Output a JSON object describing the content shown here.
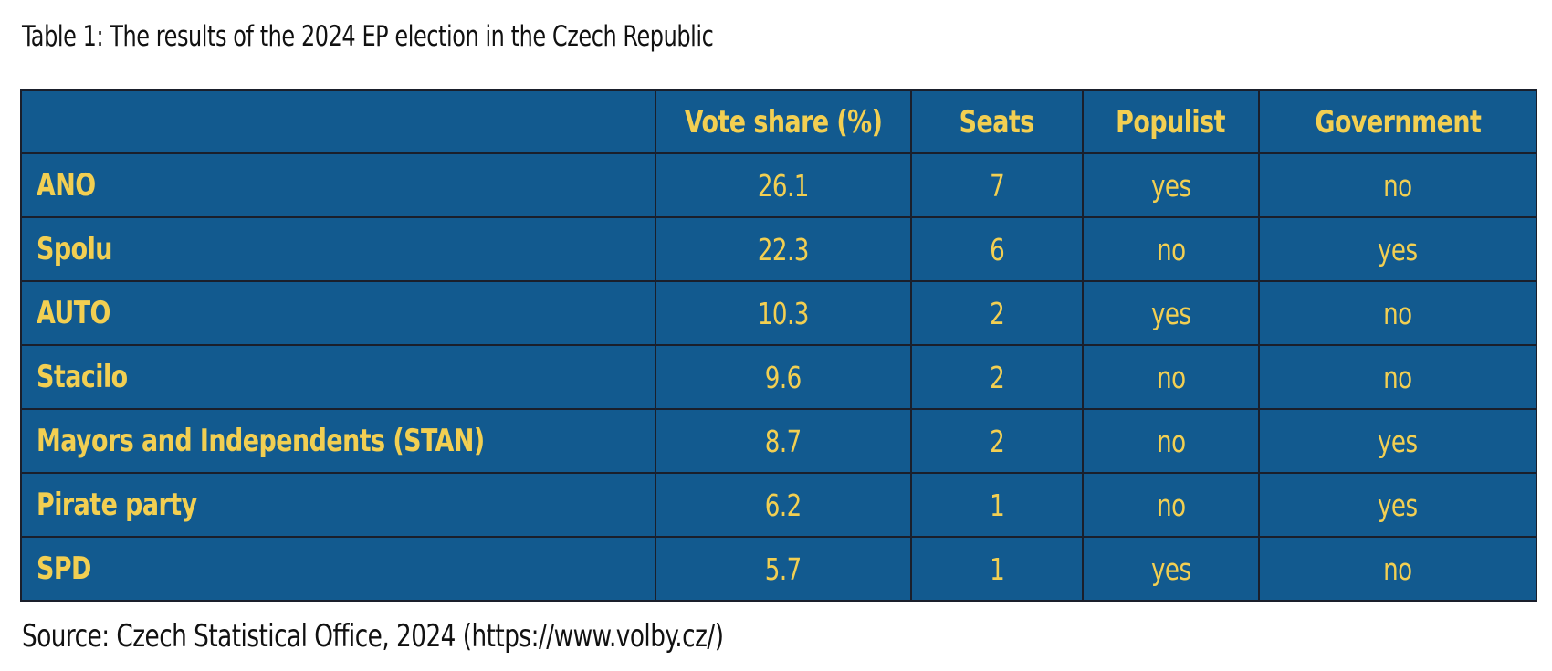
{
  "caption": "Table 1: The results of the 2024 EP election in the Czech Republic",
  "table": {
    "headers": [
      "",
      "Vote share (%)",
      "Seats",
      "Populist",
      "Government"
    ],
    "rows": [
      {
        "party": "ANO",
        "vote_share": "26.1",
        "seats": "7",
        "populist": "yes",
        "government": "no"
      },
      {
        "party": "Spolu",
        "vote_share": "22.3",
        "seats": "6",
        "populist": "no",
        "government": "yes"
      },
      {
        "party": "AUTO",
        "vote_share": "10.3",
        "seats": "2",
        "populist": "yes",
        "government": "no"
      },
      {
        "party": "Stacilo",
        "vote_share": "9.6",
        "seats": "2",
        "populist": "no",
        "government": "no"
      },
      {
        "party": "Mayors and Independents (STAN)",
        "vote_share": "8.7",
        "seats": "2",
        "populist": "no",
        "government": "yes"
      },
      {
        "party": "Pirate party",
        "vote_share": "6.2",
        "seats": "1",
        "populist": "no",
        "government": "yes"
      },
      {
        "party": "SPD",
        "vote_share": "5.7",
        "seats": "1",
        "populist": "yes",
        "government": "no"
      }
    ]
  },
  "source": "Source: Czech Statistical Office, 2024 (https://www.volby.cz/)",
  "colors": {
    "table_background": "#125a8f",
    "table_text": "#f2cf52",
    "grid_lines": "#1a1f2b"
  }
}
